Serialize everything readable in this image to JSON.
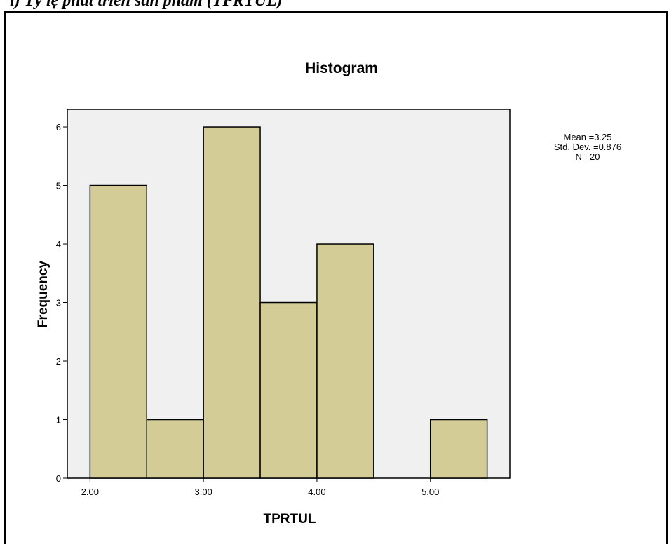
{
  "caption": "i) Tỷ lệ phát triển sản phẩm (TPRTUL)",
  "chart_data": {
    "type": "bar",
    "title": "Histogram",
    "xlabel": "TPRTUL",
    "ylabel": "Frequency",
    "bins": [
      {
        "start": 2.0,
        "end": 2.5,
        "count": 5
      },
      {
        "start": 2.5,
        "end": 3.0,
        "count": 1
      },
      {
        "start": 3.0,
        "end": 3.5,
        "count": 6
      },
      {
        "start": 3.5,
        "end": 4.0,
        "count": 3
      },
      {
        "start": 4.0,
        "end": 4.5,
        "count": 4
      },
      {
        "start": 4.5,
        "end": 5.0,
        "count": 0
      },
      {
        "start": 5.0,
        "end": 5.5,
        "count": 1
      }
    ],
    "xlim": [
      1.8,
      5.7
    ],
    "ylim": [
      0,
      6.3
    ],
    "xticks": [
      {
        "value": 2.0,
        "label": "2.00"
      },
      {
        "value": 3.0,
        "label": "3.00"
      },
      {
        "value": 4.0,
        "label": "4.00"
      },
      {
        "value": 5.0,
        "label": "5.00"
      }
    ],
    "yticks": [
      {
        "value": 0,
        "label": "0"
      },
      {
        "value": 1,
        "label": "1"
      },
      {
        "value": 2,
        "label": "2"
      },
      {
        "value": 3,
        "label": "3"
      },
      {
        "value": 4,
        "label": "4"
      },
      {
        "value": 5,
        "label": "5"
      },
      {
        "value": 6,
        "label": "6"
      }
    ],
    "stats": [
      "Mean =3.25",
      "Std. Dev. =0.876",
      "N =20"
    ],
    "colors": {
      "bar_fill": "#d4cc96",
      "plot_background": "#f0f0f0",
      "outline": "#000000"
    },
    "grid": false
  }
}
